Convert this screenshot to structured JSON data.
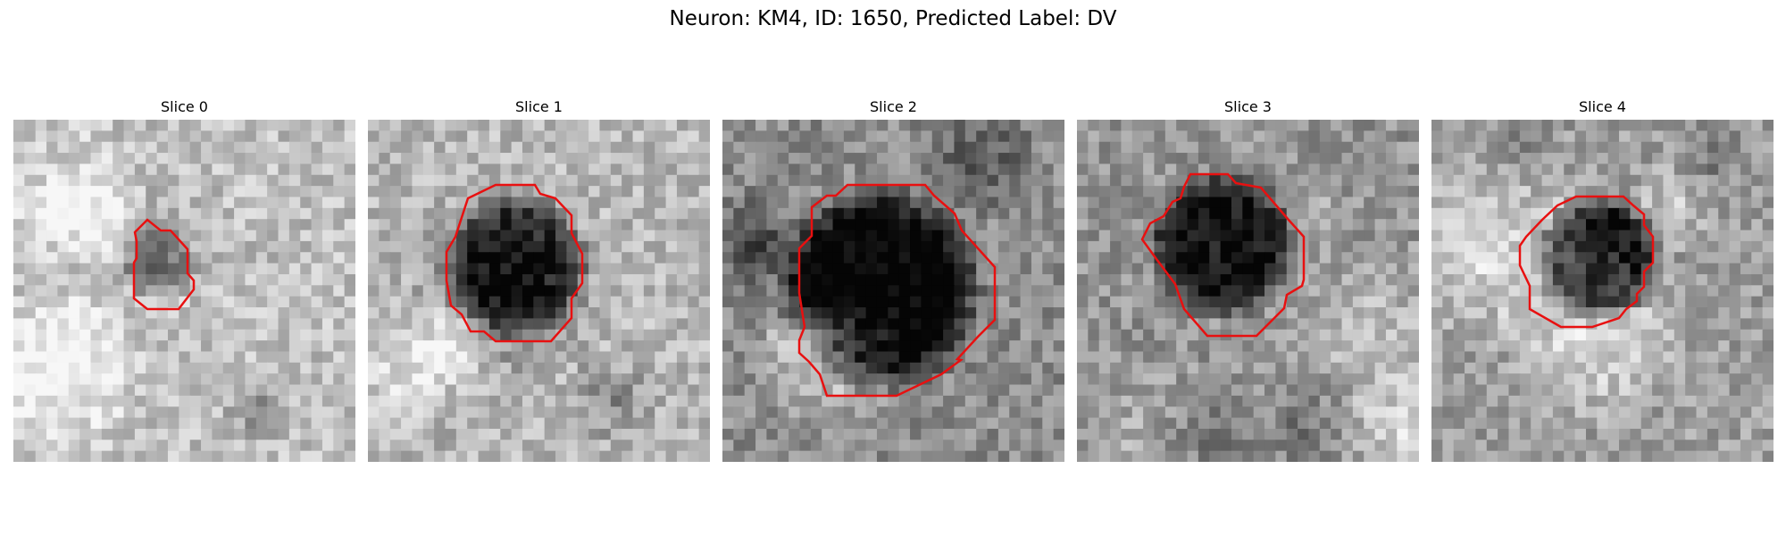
{
  "figure": {
    "title": "Neuron: KM4, ID: 1650, Predicted Label: DV"
  },
  "colors": {
    "contour": "#e81010",
    "background": "#ffffff"
  },
  "slices": [
    {
      "title": "Slice 0",
      "grid_size": 31,
      "seed": 11,
      "cell_label_darkness": 0.35,
      "cell_shape": "small-octagon",
      "base_gray": 0.75
    },
    {
      "title": "Slice 1",
      "grid_size": 31,
      "seed": 23,
      "cell_label_darkness": 0.55,
      "cell_shape": "octagon",
      "base_gray": 0.72
    },
    {
      "title": "Slice 2",
      "grid_size": 31,
      "seed": 37,
      "cell_label_darkness": 0.78,
      "cell_shape": "octagon",
      "base_gray": 0.55
    },
    {
      "title": "Slice 3",
      "grid_size": 31,
      "seed": 41,
      "cell_label_darkness": 0.68,
      "cell_shape": "octagon",
      "base_gray": 0.58
    },
    {
      "title": "Slice 4",
      "grid_size": 31,
      "seed": 53,
      "cell_label_darkness": 0.72,
      "cell_shape": "octagon",
      "base_gray": 0.62
    }
  ]
}
